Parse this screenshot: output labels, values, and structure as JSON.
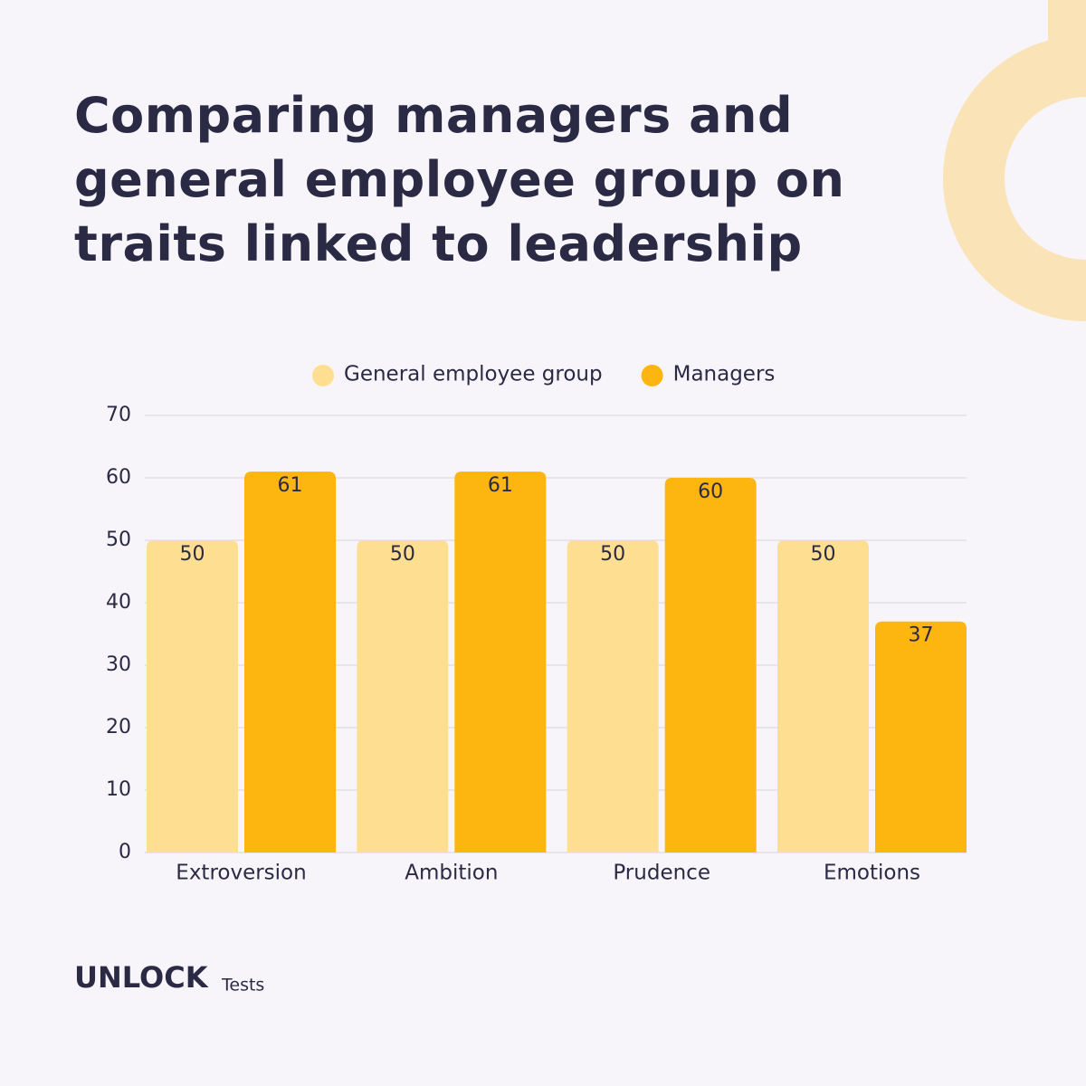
{
  "chart_data": {
    "type": "bar",
    "title": "Comparing managers and general employee group on traits linked to leadership",
    "categories": [
      "Extroversion",
      "Ambition",
      "Prudence",
      "Emotions"
    ],
    "series": [
      {
        "name": "General employee group",
        "color": "#fedf91",
        "values": [
          50,
          50,
          50,
          50
        ]
      },
      {
        "name": "Managers",
        "color": "#fdb50f",
        "values": [
          61,
          61,
          60,
          37
        ]
      }
    ],
    "ylim": [
      0,
      70
    ],
    "yticks": [
      0,
      10,
      20,
      30,
      40,
      50,
      60,
      70
    ],
    "grid": true,
    "legend": "top"
  },
  "brand": {
    "name": "UNLOCK",
    "sub": "Tests"
  }
}
